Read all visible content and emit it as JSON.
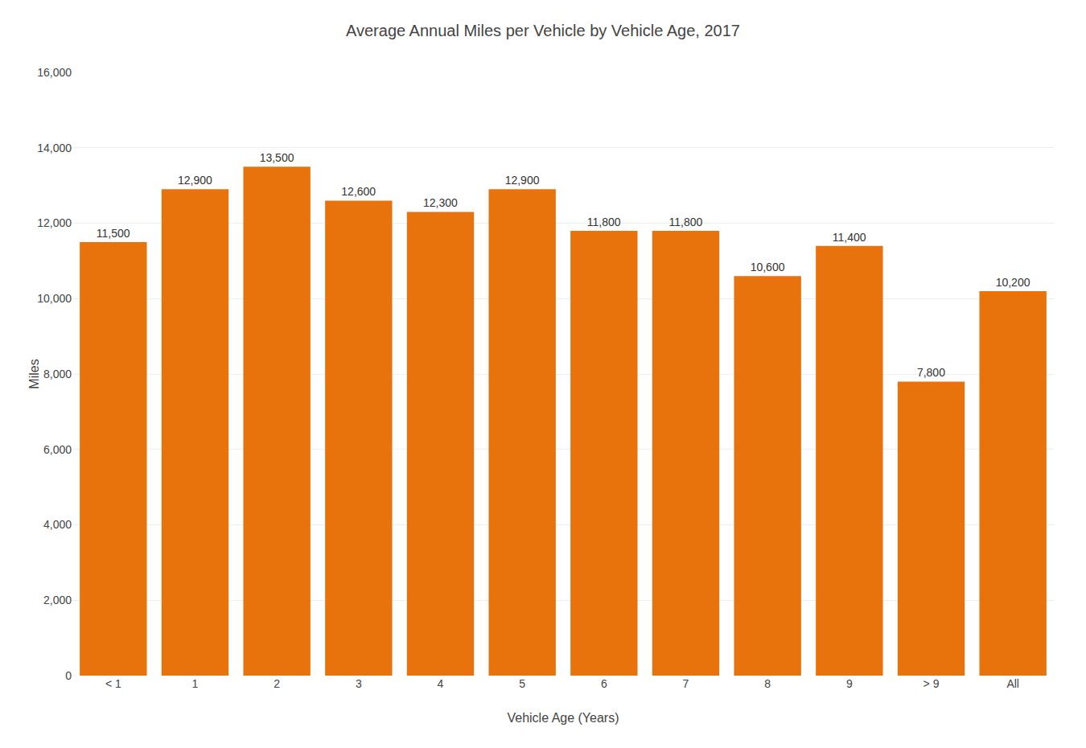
{
  "chart_data": {
    "type": "bar",
    "title": "Average Annual Miles per Vehicle by Vehicle Age, 2017",
    "xlabel": "Vehicle Age (Years)",
    "ylabel": "Miles",
    "categories": [
      "< 1",
      "1",
      "2",
      "3",
      "4",
      "5",
      "6",
      "7",
      "8",
      "9",
      "> 9",
      "All"
    ],
    "values": [
      11500,
      12900,
      13500,
      12600,
      12300,
      12900,
      11800,
      11800,
      10600,
      11400,
      7800,
      10200
    ],
    "value_labels": [
      "11,500",
      "12,900",
      "13,500",
      "12,600",
      "12,300",
      "12,900",
      "11,800",
      "11,800",
      "10,600",
      "11,400",
      "7,800",
      "10,200"
    ],
    "data_labels": true,
    "color": "#E8720C",
    "ylim": [
      0,
      16000
    ],
    "yticks": [
      0,
      {
        "value": 2000,
        "label": "2,000"
      },
      {
        "value": 4000,
        "label": "4,000"
      },
      {
        "value": 6000,
        "label": "6,000"
      },
      {
        "value": 8000,
        "label": "8,000"
      },
      {
        "value": 10000,
        "label": "10,000"
      },
      {
        "value": 12000,
        "label": "12,000"
      },
      {
        "value": 14000,
        "label": "14,000"
      },
      {
        "value": 16000,
        "label": "16,000"
      }
    ],
    "grid": true
  }
}
